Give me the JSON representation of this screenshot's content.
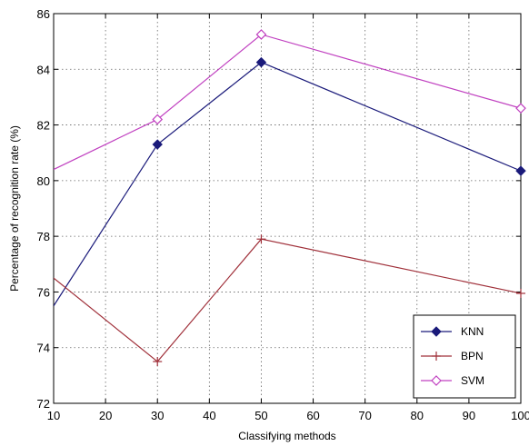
{
  "chart_data": {
    "type": "line",
    "title": "",
    "xlabel": "Classifying methods",
    "ylabel": "Percentage of recognition rate (%)",
    "xlim": [
      10,
      100
    ],
    "ylim": [
      72,
      86
    ],
    "xticks": [
      10,
      20,
      30,
      40,
      50,
      60,
      70,
      80,
      90,
      100
    ],
    "yticks": [
      72,
      74,
      76,
      78,
      80,
      82,
      84,
      86
    ],
    "grid": true,
    "legend_position": "bottom-right",
    "series": [
      {
        "name": "KNN",
        "color": "#1a1a7a",
        "marker": "filled-diamond",
        "x": [
          10,
          30,
          50,
          100
        ],
        "values": [
          75.5,
          81.3,
          84.25,
          80.35
        ]
      },
      {
        "name": "BPN",
        "color": "#a0303a",
        "marker": "plus",
        "x": [
          10,
          30,
          50,
          100
        ],
        "values": [
          76.5,
          73.5,
          77.9,
          75.95
        ]
      },
      {
        "name": "SVM",
        "color": "#c040c0",
        "marker": "open-diamond",
        "x": [
          10,
          30,
          50,
          100
        ],
        "values": [
          80.4,
          82.2,
          85.25,
          82.6
        ]
      }
    ]
  }
}
